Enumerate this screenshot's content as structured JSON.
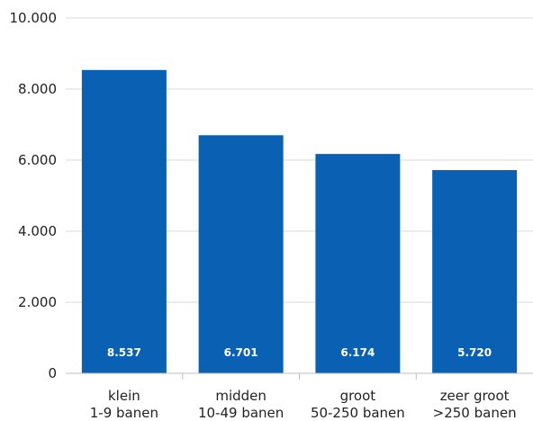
{
  "chart_data": {
    "type": "bar",
    "categories": [
      [
        "klein",
        "1-9 banen"
      ],
      [
        "midden",
        "10-49 banen"
      ],
      [
        "groot",
        "50-250 banen"
      ],
      [
        "zeer groot",
        ">250 banen"
      ]
    ],
    "values": [
      8537,
      6701,
      6174,
      5720
    ],
    "data_labels": [
      "8.537",
      "6.701",
      "6.174",
      "5.720"
    ],
    "ylim": [
      0,
      10000
    ],
    "yticks": [
      0,
      2000,
      4000,
      6000,
      8000,
      10000
    ],
    "ytick_labels": [
      "0",
      "2.000",
      "4.000",
      "6.000",
      "8.000",
      "10.000"
    ],
    "title": "",
    "xlabel": "",
    "ylabel": "",
    "grid": true,
    "colors": {
      "bar": "#0a61b4",
      "grid": "#d9d9d9",
      "text": "#222222",
      "label": "#ffffff"
    }
  }
}
